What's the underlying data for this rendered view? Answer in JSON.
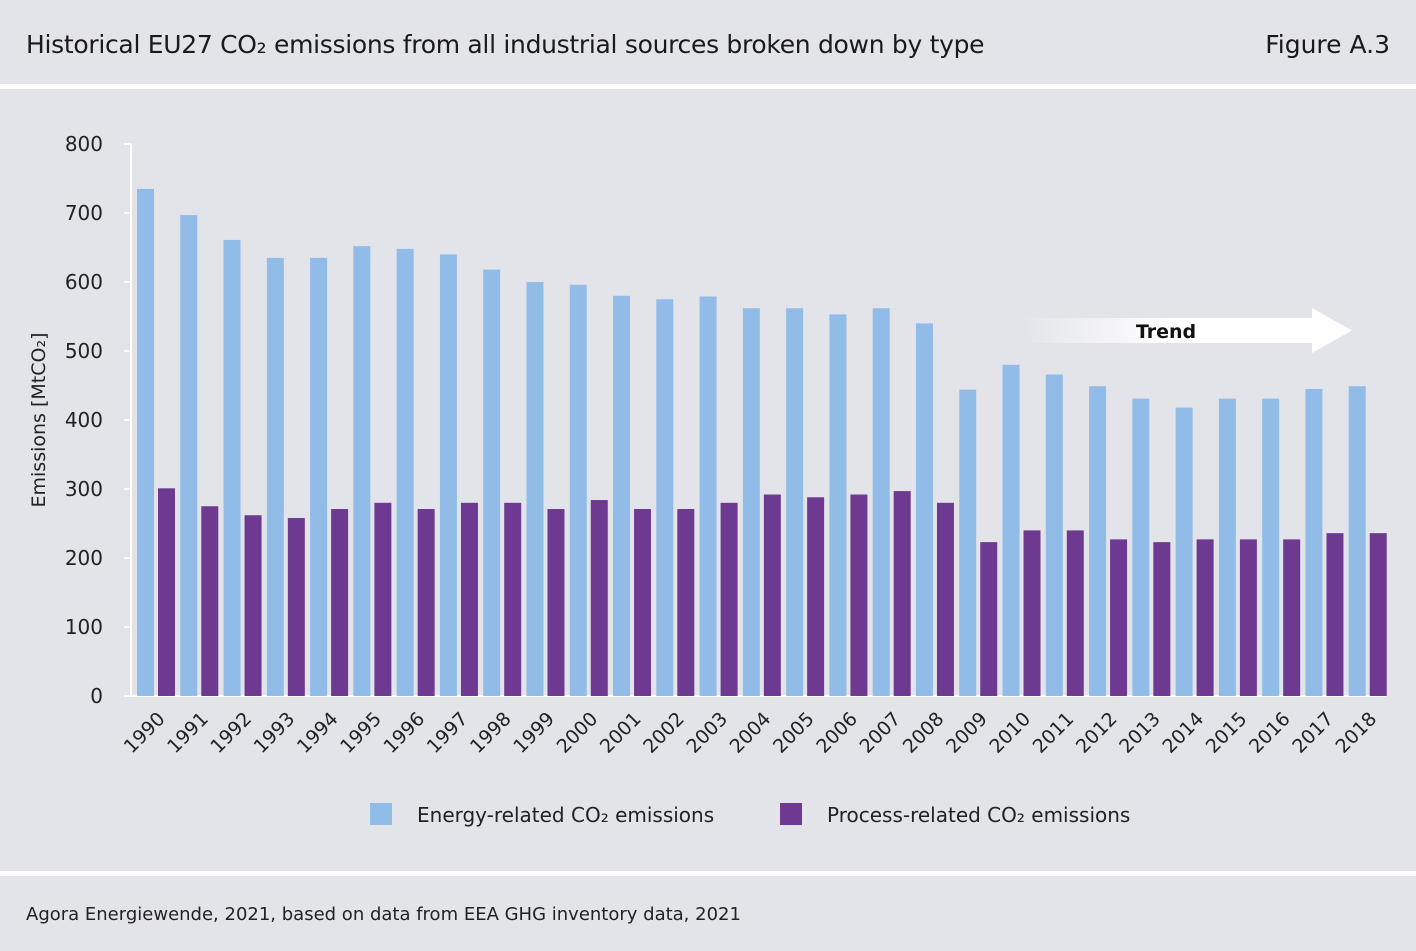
{
  "header": {
    "title": "Historical EU27 CO₂ emissions from all industrial sources broken down by type",
    "figure": "Figure A.3"
  },
  "footer": {
    "source": "Agora Energiewende, 2021, based on data from EEA GHG inventory data, 2021"
  },
  "colors": {
    "energy": "#92bce8",
    "process": "#6e3a91",
    "axis": "#ffffff"
  },
  "annotation": {
    "trend_label": "Trend"
  },
  "chart_data": {
    "type": "bar",
    "title": "Historical EU27 CO₂ emissions from all industrial sources broken down by type",
    "xlabel": "",
    "ylabel": "Emissions [MtCO₂]",
    "ylim": [
      0,
      800
    ],
    "yticks": [
      0,
      100,
      200,
      300,
      400,
      500,
      600,
      700,
      800
    ],
    "categories": [
      "1990",
      "1991",
      "1992",
      "1993",
      "1994",
      "1995",
      "1996",
      "1997",
      "1998",
      "1999",
      "2000",
      "2001",
      "2002",
      "2003",
      "2004",
      "2005",
      "2006",
      "2007",
      "2008",
      "2009",
      "2010",
      "2011",
      "2012",
      "2013",
      "2014",
      "2015",
      "2016",
      "2017",
      "2018"
    ],
    "series": [
      {
        "name": "Energy-related CO₂ emissions",
        "values": [
          735,
          697,
          661,
          635,
          635,
          652,
          648,
          640,
          618,
          600,
          596,
          580,
          575,
          579,
          562,
          562,
          553,
          562,
          540,
          444,
          480,
          466,
          449,
          431,
          418,
          431,
          431,
          445,
          449
        ]
      },
      {
        "name": "Process-related CO₂ emissions",
        "values": [
          301,
          275,
          262,
          258,
          271,
          280,
          271,
          280,
          280,
          271,
          284,
          271,
          271,
          280,
          292,
          288,
          292,
          297,
          280,
          223,
          240,
          240,
          227,
          223,
          227,
          227,
          227,
          236,
          236
        ]
      }
    ],
    "legend_position": "bottom-center",
    "grid": false
  }
}
